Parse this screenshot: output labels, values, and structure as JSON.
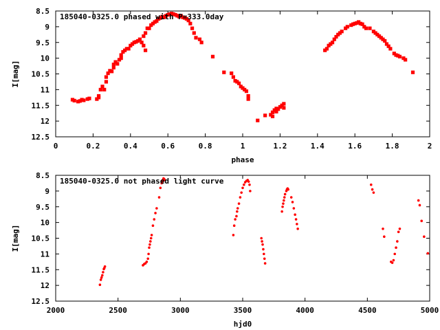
{
  "chart_data": [
    {
      "type": "scatter",
      "title": "185040-0325.0 phased with P=333.0day",
      "xlabel": "phase",
      "ylabel": "I[mag]",
      "xlim": [
        0,
        2
      ],
      "ylim": [
        8.5,
        12.5
      ],
      "y_inverted": true,
      "grid": false,
      "legend": "none",
      "xticks": [
        "0",
        "0.2",
        "0.4",
        "0.6",
        "0.8",
        "1",
        "1.2",
        "1.4",
        "1.6",
        "1.8",
        "2"
      ],
      "yticks": [
        "8.5",
        "9",
        "9.5",
        "10",
        "10.5",
        "11",
        "11.5",
        "12",
        "12.5"
      ],
      "marker_color": "#ff0000",
      "points": [
        [
          0.09,
          11.32
        ],
        [
          0.1,
          11.35
        ],
        [
          0.12,
          11.38
        ],
        [
          0.13,
          11.36
        ],
        [
          0.14,
          11.32
        ],
        [
          0.15,
          11.34
        ],
        [
          0.17,
          11.3
        ],
        [
          0.18,
          11.28
        ],
        [
          0.22,
          11.3
        ],
        [
          0.23,
          11.25
        ],
        [
          0.23,
          11.2
        ],
        [
          0.24,
          11.0
        ],
        [
          0.25,
          10.9
        ],
        [
          0.26,
          11.0
        ],
        [
          0.27,
          10.75
        ],
        [
          0.27,
          10.6
        ],
        [
          0.28,
          10.48
        ],
        [
          0.29,
          10.4
        ],
        [
          0.3,
          10.42
        ],
        [
          0.31,
          10.3
        ],
        [
          0.31,
          10.2
        ],
        [
          0.32,
          10.12
        ],
        [
          0.33,
          10.18
        ],
        [
          0.34,
          10.05
        ],
        [
          0.35,
          9.9
        ],
        [
          0.35,
          10.0
        ],
        [
          0.36,
          9.8
        ],
        [
          0.37,
          9.75
        ],
        [
          0.38,
          9.7
        ],
        [
          0.39,
          9.7
        ],
        [
          0.4,
          9.6
        ],
        [
          0.41,
          9.55
        ],
        [
          0.42,
          9.5
        ],
        [
          0.43,
          9.48
        ],
        [
          0.44,
          9.45
        ],
        [
          0.45,
          9.4
        ],
        [
          0.46,
          9.5
        ],
        [
          0.47,
          9.6
        ],
        [
          0.48,
          9.75
        ],
        [
          0.47,
          9.3
        ],
        [
          0.48,
          9.2
        ],
        [
          0.49,
          9.05
        ],
        [
          0.5,
          9.05
        ],
        [
          0.51,
          8.95
        ],
        [
          0.52,
          8.9
        ],
        [
          0.53,
          8.85
        ],
        [
          0.54,
          8.82
        ],
        [
          0.55,
          8.75
        ],
        [
          0.56,
          8.72
        ],
        [
          0.57,
          8.68
        ],
        [
          0.58,
          8.7
        ],
        [
          0.59,
          8.65
        ],
        [
          0.6,
          8.62
        ],
        [
          0.61,
          8.6
        ],
        [
          0.62,
          8.58
        ],
        [
          0.63,
          8.6
        ],
        [
          0.64,
          8.62
        ],
        [
          0.65,
          8.65
        ],
        [
          0.66,
          8.68
        ],
        [
          0.67,
          8.65
        ],
        [
          0.68,
          8.7
        ],
        [
          0.69,
          8.72
        ],
        [
          0.7,
          8.75
        ],
        [
          0.71,
          8.8
        ],
        [
          0.72,
          8.9
        ],
        [
          0.73,
          9.05
        ],
        [
          0.74,
          9.2
        ],
        [
          0.75,
          9.35
        ],
        [
          0.77,
          9.4
        ],
        [
          0.78,
          9.5
        ],
        [
          0.84,
          9.95
        ],
        [
          0.9,
          10.45
        ],
        [
          0.94,
          10.48
        ],
        [
          0.95,
          10.6
        ],
        [
          0.96,
          10.72
        ],
        [
          0.97,
          10.75
        ],
        [
          0.98,
          10.8
        ],
        [
          0.99,
          10.9
        ],
        [
          1.0,
          10.95
        ],
        [
          1.01,
          11.0
        ],
        [
          1.02,
          11.05
        ],
        [
          1.03,
          11.2
        ],
        [
          1.03,
          11.3
        ],
        [
          1.08,
          11.98
        ],
        [
          1.12,
          11.82
        ],
        [
          1.15,
          11.8
        ],
        [
          1.16,
          11.72
        ],
        [
          1.16,
          11.85
        ],
        [
          1.17,
          11.65
        ],
        [
          1.18,
          11.7
        ],
        [
          1.18,
          11.6
        ],
        [
          1.19,
          11.62
        ],
        [
          1.2,
          11.55
        ],
        [
          1.21,
          11.5
        ],
        [
          1.22,
          11.45
        ],
        [
          1.22,
          11.58
        ],
        [
          1.44,
          9.75
        ],
        [
          1.45,
          9.7
        ],
        [
          1.46,
          9.6
        ],
        [
          1.47,
          9.55
        ],
        [
          1.48,
          9.5
        ],
        [
          1.49,
          9.4
        ],
        [
          1.5,
          9.32
        ],
        [
          1.51,
          9.25
        ],
        [
          1.52,
          9.2
        ],
        [
          1.53,
          9.15
        ],
        [
          1.55,
          9.05
        ],
        [
          1.56,
          9.0
        ],
        [
          1.58,
          8.95
        ],
        [
          1.59,
          8.92
        ],
        [
          1.6,
          8.9
        ],
        [
          1.61,
          8.88
        ],
        [
          1.62,
          8.85
        ],
        [
          1.63,
          8.9
        ],
        [
          1.64,
          8.92
        ],
        [
          1.65,
          9.0
        ],
        [
          1.66,
          9.05
        ],
        [
          1.68,
          9.05
        ],
        [
          1.7,
          9.15
        ],
        [
          1.71,
          9.2
        ],
        [
          1.72,
          9.25
        ],
        [
          1.73,
          9.3
        ],
        [
          1.74,
          9.35
        ],
        [
          1.75,
          9.4
        ],
        [
          1.76,
          9.45
        ],
        [
          1.77,
          9.55
        ],
        [
          1.78,
          9.62
        ],
        [
          1.79,
          9.7
        ],
        [
          1.81,
          9.85
        ],
        [
          1.82,
          9.9
        ],
        [
          1.83,
          9.92
        ],
        [
          1.84,
          9.95
        ],
        [
          1.86,
          10.0
        ],
        [
          1.87,
          10.05
        ],
        [
          1.91,
          10.45
        ]
      ]
    },
    {
      "type": "scatter",
      "title": "185040-0325.0 not phased light curve",
      "xlabel": "hjd0",
      "ylabel": "I[mag]",
      "xlim": [
        2000,
        5000
      ],
      "ylim": [
        8.5,
        12.5
      ],
      "y_inverted": true,
      "grid": false,
      "legend": "none",
      "xticks": [
        "2000",
        "2500",
        "3000",
        "3500",
        "4000",
        "4500",
        "5000"
      ],
      "yticks": [
        "8.5",
        "9",
        "9.5",
        "10",
        "10.5",
        "11",
        "11.5",
        "12",
        "12.5"
      ],
      "marker_color": "#ff0000",
      "points": [
        [
          2355,
          11.98
        ],
        [
          2362,
          11.82
        ],
        [
          2368,
          11.75
        ],
        [
          2374,
          11.68
        ],
        [
          2380,
          11.58
        ],
        [
          2386,
          11.48
        ],
        [
          2390,
          11.45
        ],
        [
          2395,
          11.4
        ],
        [
          2700,
          11.36
        ],
        [
          2710,
          11.32
        ],
        [
          2720,
          11.3
        ],
        [
          2730,
          11.25
        ],
        [
          2740,
          11.15
        ],
        [
          2745,
          11.0
        ],
        [
          2750,
          10.8
        ],
        [
          2755,
          10.7
        ],
        [
          2760,
          10.6
        ],
        [
          2765,
          10.5
        ],
        [
          2770,
          10.4
        ],
        [
          2780,
          10.1
        ],
        [
          2790,
          9.9
        ],
        [
          2800,
          9.7
        ],
        [
          2810,
          9.55
        ],
        [
          2830,
          9.2
        ],
        [
          2840,
          8.9
        ],
        [
          2850,
          8.75
        ],
        [
          2855,
          8.7
        ],
        [
          2860,
          8.65
        ],
        [
          2865,
          8.6
        ],
        [
          2870,
          8.62
        ],
        [
          2875,
          8.65
        ],
        [
          3425,
          10.4
        ],
        [
          3432,
          10.1
        ],
        [
          3440,
          9.9
        ],
        [
          3450,
          9.8
        ],
        [
          3455,
          9.65
        ],
        [
          3460,
          9.55
        ],
        [
          3470,
          9.4
        ],
        [
          3480,
          9.2
        ],
        [
          3490,
          9.05
        ],
        [
          3500,
          8.9
        ],
        [
          3510,
          8.8
        ],
        [
          3520,
          8.72
        ],
        [
          3530,
          8.68
        ],
        [
          3540,
          8.65
        ],
        [
          3548,
          8.7
        ],
        [
          3555,
          8.8
        ],
        [
          3560,
          9.0
        ],
        [
          3650,
          10.5
        ],
        [
          3655,
          10.6
        ],
        [
          3660,
          10.7
        ],
        [
          3665,
          10.85
        ],
        [
          3670,
          11.0
        ],
        [
          3675,
          11.15
        ],
        [
          3680,
          11.3
        ],
        [
          3815,
          9.65
        ],
        [
          3820,
          9.5
        ],
        [
          3825,
          9.4
        ],
        [
          3830,
          9.3
        ],
        [
          3835,
          9.2
        ],
        [
          3840,
          9.1
        ],
        [
          3850,
          9.0
        ],
        [
          3855,
          8.95
        ],
        [
          3860,
          8.92
        ],
        [
          3865,
          8.95
        ],
        [
          3890,
          9.2
        ],
        [
          3900,
          9.35
        ],
        [
          3910,
          9.55
        ],
        [
          3920,
          9.75
        ],
        [
          3928,
          9.9
        ],
        [
          3935,
          10.05
        ],
        [
          3942,
          10.2
        ],
        [
          4530,
          8.8
        ],
        [
          4540,
          8.95
        ],
        [
          4550,
          9.05
        ],
        [
          4625,
          10.2
        ],
        [
          4635,
          10.45
        ],
        [
          4690,
          11.25
        ],
        [
          4700,
          11.28
        ],
        [
          4710,
          11.2
        ],
        [
          4720,
          11.0
        ],
        [
          4730,
          10.8
        ],
        [
          4740,
          10.6
        ],
        [
          4750,
          10.3
        ],
        [
          4760,
          10.2
        ],
        [
          4910,
          9.3
        ],
        [
          4920,
          9.45
        ],
        [
          4935,
          9.95
        ],
        [
          4955,
          10.45
        ],
        [
          4985,
          10.98
        ]
      ]
    }
  ]
}
